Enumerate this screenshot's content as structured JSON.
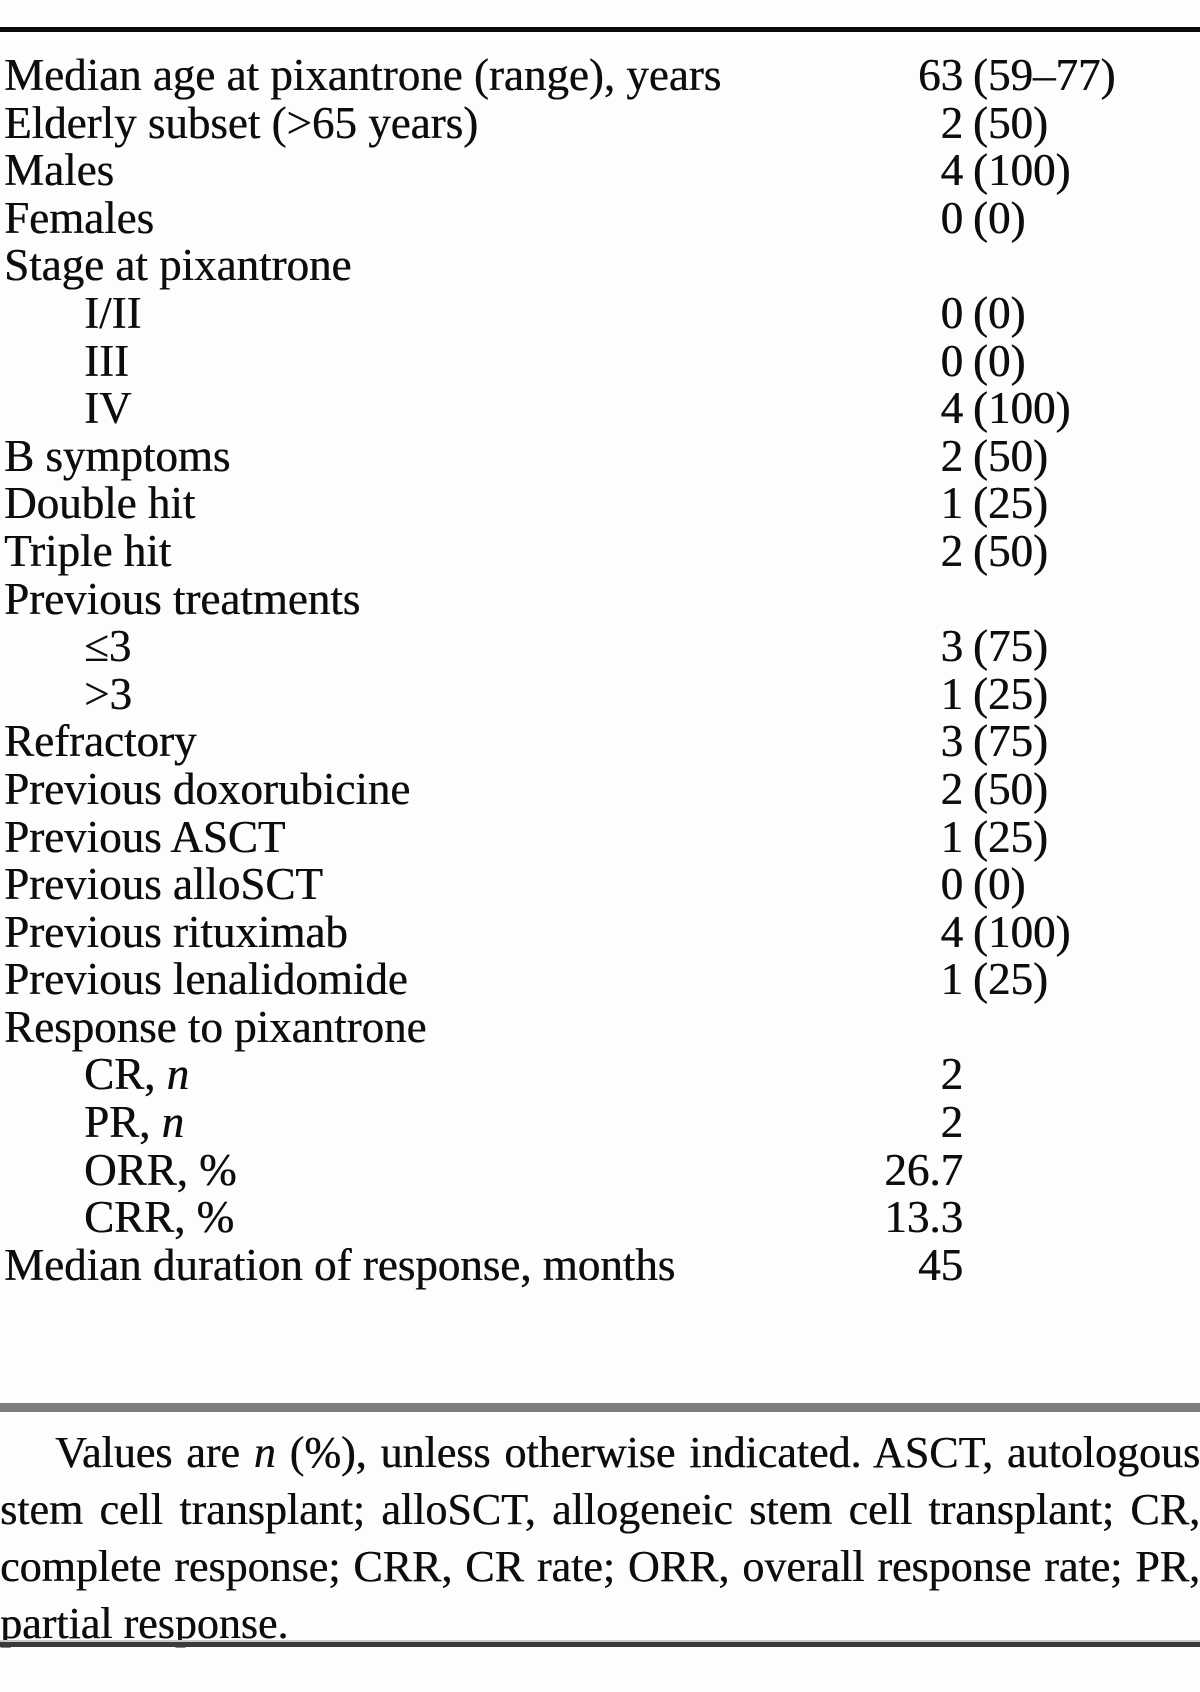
{
  "page": {
    "background_color": "#fdfdfd",
    "text_color": "#0d0d0d"
  },
  "rules": {
    "top_color": "#0a0a0a",
    "middle_color": "#7d7d7d",
    "bottom_dark_color": "#3a3a3a",
    "bottom_light_color": "#c9c9c9"
  },
  "table": {
    "value_format_note": "n (%)",
    "rows": [
      {
        "label": "Median age at pixantrone (range), years",
        "num": "63",
        "paren": "(59–77)"
      },
      {
        "label": "Elderly subset (>65 years)",
        "num": "2",
        "paren": "(50)"
      },
      {
        "label": "Males",
        "num": "4",
        "paren": "(100)"
      },
      {
        "label": "Females",
        "num": "0",
        "paren": "(0)"
      },
      {
        "label": "Stage at pixantrone"
      },
      {
        "label": "I/II",
        "indent": true,
        "num": "0",
        "paren": "(0)"
      },
      {
        "label": "III",
        "indent": true,
        "num": "0",
        "paren": "(0)"
      },
      {
        "label": "IV",
        "indent": true,
        "num": "4",
        "paren": "(100)"
      },
      {
        "label": "B symptoms",
        "num": "2",
        "paren": "(50)"
      },
      {
        "label": "Double hit",
        "num": "1",
        "paren": "(25)"
      },
      {
        "label": "Triple hit",
        "num": "2",
        "paren": "(50)"
      },
      {
        "label": "Previous treatments"
      },
      {
        "label": "≤3",
        "indent": true,
        "num": "3",
        "paren": "(75)"
      },
      {
        "label": ">3",
        "indent": true,
        "num": "1",
        "paren": "(25)"
      },
      {
        "label": "Refractory",
        "num": "3",
        "paren": "(75)"
      },
      {
        "label": "Previous doxorubicine",
        "num": "2",
        "paren": "(50)"
      },
      {
        "label": "Previous ASCT",
        "num": "1",
        "paren": "(25)"
      },
      {
        "label": "Previous alloSCT",
        "num": "0",
        "paren": "(0)"
      },
      {
        "label": "Previous rituximab",
        "num": "4",
        "paren": "(100)"
      },
      {
        "label": "Previous lenalidomide",
        "num": "1",
        "paren": "(25)"
      },
      {
        "label": "Response to pixantrone"
      },
      {
        "label": "CR, ",
        "label_italic": "n",
        "indent": true,
        "num": "2"
      },
      {
        "label": "PR, ",
        "label_italic": "n",
        "indent": true,
        "num": "2"
      },
      {
        "label": "ORR, %",
        "indent": true,
        "num": "26.7"
      },
      {
        "label": "CRR, %",
        "indent": true,
        "num": "13.3"
      },
      {
        "label": "Median duration of response, months",
        "num": "45"
      }
    ]
  },
  "footnote": {
    "pre": "Values are ",
    "italic": "n",
    "post": " (%), unless otherwise indicated. ASCT, autologous stem cell transplant; alloSCT, allogeneic stem cell transplant; CR, complete response; CRR, CR rate; ORR, overall response rate; PR, partial response."
  }
}
